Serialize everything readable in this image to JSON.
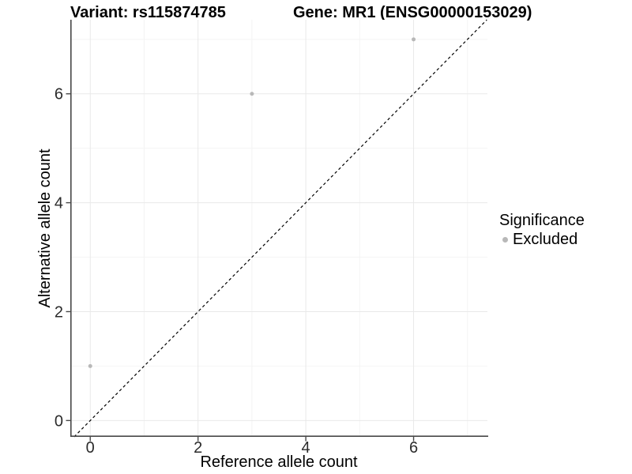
{
  "chart_data": {
    "type": "scatter",
    "titles": {
      "left": "Variant: rs115874785",
      "right": "Gene: MR1 (ENSG00000153029)"
    },
    "xlabel": "Reference allele count",
    "ylabel": "Alternative allele count",
    "xlim": [
      -0.37,
      7.37
    ],
    "ylim": [
      -0.3,
      7.36
    ],
    "x_ticks": [
      0,
      2,
      4,
      6
    ],
    "y_ticks": [
      0,
      2,
      4,
      6
    ],
    "x_minor": [
      1,
      3,
      5,
      7
    ],
    "y_minor": [
      1,
      3,
      5,
      7
    ],
    "series": [
      {
        "name": "Excluded",
        "color": "#b8b8b8",
        "points": [
          {
            "x": 0,
            "y": 1
          },
          {
            "x": 3,
            "y": 6
          },
          {
            "x": 6,
            "y": 7
          }
        ]
      }
    ],
    "identity_line": {
      "equation": "y = x",
      "style": "dashed",
      "color": "#000000"
    },
    "legend": {
      "title": "Significance",
      "position": "right",
      "items": [
        {
          "label": "Excluded",
          "color": "#b8b8b8"
        }
      ]
    },
    "grid": {
      "major_color": "#e9e9e9",
      "minor_color": "#f4f4f4",
      "on": true
    },
    "axis": {
      "line_color": "#484848",
      "tick_color": "#484848",
      "label_color": "#2b2b2b"
    }
  }
}
